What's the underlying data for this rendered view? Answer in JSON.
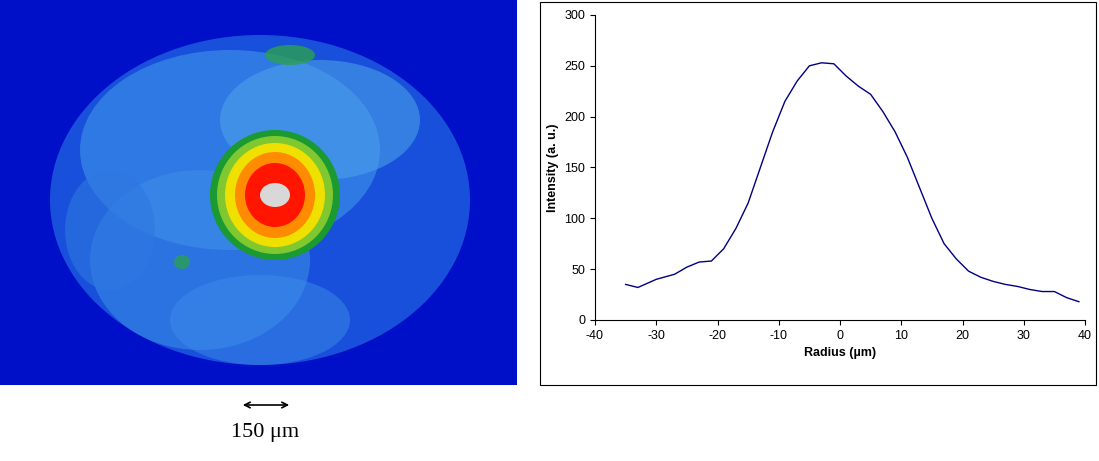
{
  "image": {
    "scale_bar": "150 μm"
  },
  "chart_data": {
    "type": "line",
    "x_label": "Radius (µm)",
    "y_label": "Intensity (a. u.)",
    "x": [
      -35,
      -33,
      -30,
      -27,
      -25,
      -23,
      -21,
      -19,
      -17,
      -15,
      -13,
      -11,
      -9,
      -7,
      -5,
      -3,
      -1,
      1,
      3,
      5,
      7,
      9,
      11,
      13,
      15,
      17,
      19,
      21,
      23,
      25,
      27,
      29,
      31,
      33,
      35,
      37,
      39
    ],
    "values": [
      35,
      32,
      40,
      45,
      52,
      57,
      58,
      70,
      90,
      115,
      150,
      185,
      215,
      235,
      250,
      253,
      252,
      240,
      230,
      222,
      205,
      185,
      160,
      130,
      100,
      75,
      60,
      48,
      42,
      38,
      35,
      33,
      30,
      28,
      28,
      22,
      18
    ],
    "color": "#000080",
    "xlim": [
      -40,
      40
    ],
    "xticks": [
      -40,
      -30,
      -20,
      -10,
      0,
      10,
      20,
      30,
      40
    ],
    "ylim": [
      0,
      300
    ],
    "yticks": [
      0,
      50,
      100,
      150,
      200,
      250,
      300
    ],
    "grid": false
  }
}
